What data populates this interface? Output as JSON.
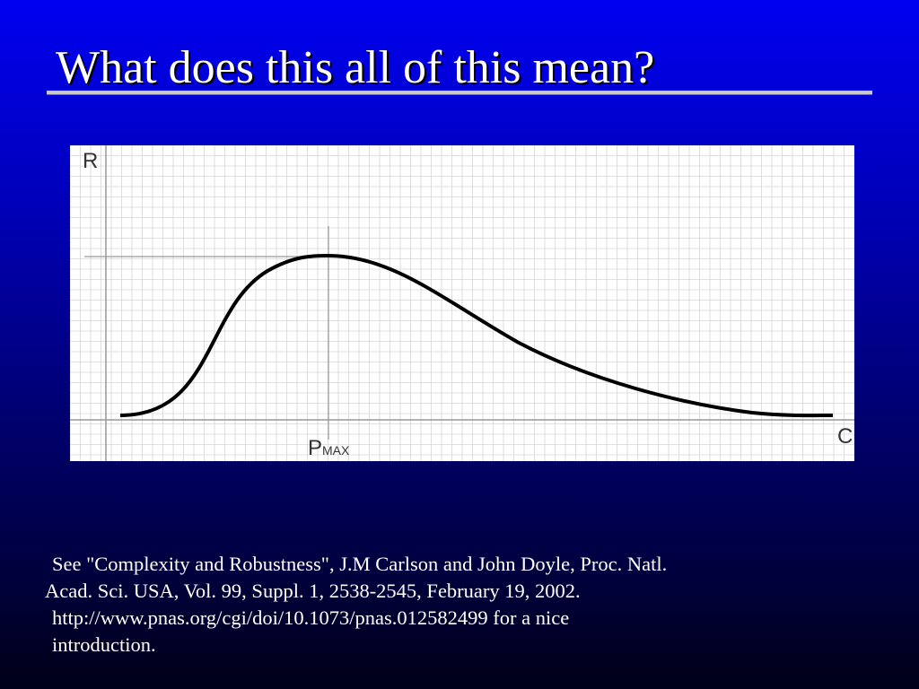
{
  "slide": {
    "title": "What does this all of this mean?",
    "citation": {
      "line1": "See \"Complexity and Robustness\", J.M Carlson and John Doyle, Proc. Natl.",
      "line2": "Acad. Sci. USA, Vol. 99, Suppl. 1, 2538-2545, February 19, 2002.",
      "line3": "http://www.pnas.org/cgi/doi/10.1073/pnas.012582499 for a nice",
      "line4": "introduction."
    }
  },
  "figure": {
    "y_axis_label": "R",
    "x_axis_label": "C",
    "peak_label_main": "P",
    "peak_label_sub": "MAX",
    "colors": {
      "background": "#ffffff",
      "grid": "#d6d6d6",
      "axes": "#999999",
      "curve": "#000000"
    }
  }
}
